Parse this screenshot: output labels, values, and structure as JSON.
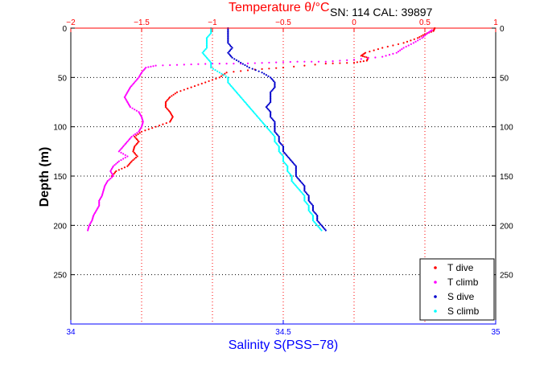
{
  "chart_data": {
    "type": "scatter",
    "title": "Temperature θ/°C",
    "subtitle": "SN: 114  CAL: 39897",
    "xlabel_bottom": "Salinity S(PSS−78)",
    "ylabel": "Depth (m)",
    "x_top": {
      "label": "Temperature θ/°C",
      "range": [
        -2,
        1
      ],
      "ticks": [
        -2,
        -1.5,
        -1,
        -0.5,
        0,
        0.5,
        1
      ],
      "tick_labels": [
        "−2",
        "−1.5",
        "−1",
        "−0.5",
        "0",
        "0.5",
        "1"
      ],
      "color": "#ff0000"
    },
    "x_bottom": {
      "label": "Salinity S(PSS−78)",
      "range": [
        34,
        35
      ],
      "ticks": [
        34,
        34.5,
        35
      ],
      "tick_labels": [
        "34",
        "34.5",
        "35"
      ],
      "color": "#0000ff"
    },
    "y": {
      "range": [
        0,
        300
      ],
      "inverted": true,
      "ticks": [
        0,
        50,
        100,
        150,
        200,
        250
      ],
      "tick_labels": [
        "0",
        "50",
        "100",
        "150",
        "200",
        "250"
      ]
    },
    "grid": true,
    "legend_position": "bottom-right",
    "series": [
      {
        "name": "T dive",
        "color": "#ff0000",
        "axis": "temperature",
        "points": [
          [
            0.57,
            0
          ],
          [
            0.56,
            3
          ],
          [
            0.5,
            6
          ],
          [
            0.45,
            10
          ],
          [
            0.35,
            15
          ],
          [
            0.2,
            20
          ],
          [
            0.08,
            25
          ],
          [
            0.05,
            28
          ],
          [
            0.1,
            30
          ],
          [
            0.09,
            33
          ],
          [
            0.0,
            35
          ],
          [
            -0.2,
            36
          ],
          [
            -0.5,
            40
          ],
          [
            -0.7,
            42
          ],
          [
            -0.9,
            45
          ],
          [
            -0.95,
            50
          ],
          [
            -1.05,
            55
          ],
          [
            -1.15,
            60
          ],
          [
            -1.25,
            65
          ],
          [
            -1.3,
            70
          ],
          [
            -1.33,
            75
          ],
          [
            -1.33,
            80
          ],
          [
            -1.3,
            85
          ],
          [
            -1.28,
            90
          ],
          [
            -1.3,
            95
          ],
          [
            -1.4,
            100
          ],
          [
            -1.5,
            105
          ],
          [
            -1.55,
            110
          ],
          [
            -1.52,
            115
          ],
          [
            -1.55,
            120
          ],
          [
            -1.56,
            125
          ],
          [
            -1.53,
            130
          ],
          [
            -1.57,
            135
          ],
          [
            -1.6,
            140
          ],
          [
            -1.68,
            145
          ],
          [
            -1.71,
            150
          ]
        ]
      },
      {
        "name": "T climb",
        "color": "#ff00ff",
        "axis": "temperature",
        "points": [
          [
            -1.88,
            205
          ],
          [
            -1.87,
            200
          ],
          [
            -1.85,
            195
          ],
          [
            -1.84,
            190
          ],
          [
            -1.82,
            185
          ],
          [
            -1.8,
            180
          ],
          [
            -1.8,
            175
          ],
          [
            -1.78,
            170
          ],
          [
            -1.77,
            165
          ],
          [
            -1.76,
            160
          ],
          [
            -1.74,
            155
          ],
          [
            -1.7,
            150
          ],
          [
            -1.72,
            145
          ],
          [
            -1.7,
            140
          ],
          [
            -1.66,
            135
          ],
          [
            -1.6,
            130
          ],
          [
            -1.66,
            125
          ],
          [
            -1.63,
            120
          ],
          [
            -1.6,
            115
          ],
          [
            -1.57,
            110
          ],
          [
            -1.52,
            105
          ],
          [
            -1.5,
            100
          ],
          [
            -1.49,
            95
          ],
          [
            -1.5,
            90
          ],
          [
            -1.52,
            85
          ],
          [
            -1.58,
            80
          ],
          [
            -1.6,
            75
          ],
          [
            -1.62,
            70
          ],
          [
            -1.6,
            65
          ],
          [
            -1.58,
            60
          ],
          [
            -1.55,
            55
          ],
          [
            -1.52,
            50
          ],
          [
            -1.5,
            45
          ],
          [
            -1.47,
            40
          ],
          [
            -1.4,
            38
          ],
          [
            -1.2,
            37
          ],
          [
            -1.0,
            36
          ],
          [
            -0.8,
            36
          ],
          [
            -0.6,
            35
          ],
          [
            -0.4,
            34
          ],
          [
            -0.2,
            34
          ],
          [
            0.0,
            32
          ],
          [
            0.2,
            29
          ],
          [
            0.3,
            25
          ],
          [
            0.35,
            20
          ],
          [
            0.42,
            15
          ],
          [
            0.48,
            10
          ],
          [
            0.52,
            5
          ],
          [
            0.55,
            2
          ]
        ]
      },
      {
        "name": "S dive",
        "color": "#0000cc",
        "axis": "salinity",
        "points": [
          [
            34.37,
            0
          ],
          [
            34.37,
            5
          ],
          [
            34.37,
            10
          ],
          [
            34.37,
            15
          ],
          [
            34.38,
            20
          ],
          [
            34.37,
            25
          ],
          [
            34.38,
            30
          ],
          [
            34.4,
            35
          ],
          [
            34.42,
            40
          ],
          [
            34.45,
            45
          ],
          [
            34.47,
            50
          ],
          [
            34.48,
            55
          ],
          [
            34.48,
            60
          ],
          [
            34.47,
            65
          ],
          [
            34.47,
            70
          ],
          [
            34.47,
            75
          ],
          [
            34.46,
            80
          ],
          [
            34.47,
            85
          ],
          [
            34.47,
            90
          ],
          [
            34.48,
            95
          ],
          [
            34.48,
            100
          ],
          [
            34.48,
            105
          ],
          [
            34.49,
            110
          ],
          [
            34.49,
            115
          ],
          [
            34.5,
            120
          ],
          [
            34.5,
            125
          ],
          [
            34.51,
            130
          ],
          [
            34.52,
            135
          ],
          [
            34.53,
            140
          ],
          [
            34.53,
            145
          ],
          [
            34.53,
            150
          ],
          [
            34.54,
            155
          ],
          [
            34.55,
            160
          ],
          [
            34.55,
            165
          ],
          [
            34.56,
            170
          ],
          [
            34.56,
            175
          ],
          [
            34.57,
            180
          ],
          [
            34.57,
            185
          ],
          [
            34.58,
            190
          ],
          [
            34.58,
            195
          ],
          [
            34.59,
            200
          ],
          [
            34.6,
            205
          ]
        ]
      },
      {
        "name": "S climb",
        "color": "#00ffff",
        "axis": "salinity",
        "points": [
          [
            34.59,
            205
          ],
          [
            34.58,
            200
          ],
          [
            34.57,
            195
          ],
          [
            34.57,
            190
          ],
          [
            34.56,
            185
          ],
          [
            34.56,
            180
          ],
          [
            34.55,
            175
          ],
          [
            34.55,
            170
          ],
          [
            34.54,
            165
          ],
          [
            34.53,
            160
          ],
          [
            34.52,
            155
          ],
          [
            34.52,
            150
          ],
          [
            34.51,
            145
          ],
          [
            34.51,
            140
          ],
          [
            34.5,
            135
          ],
          [
            34.5,
            130
          ],
          [
            34.49,
            125
          ],
          [
            34.49,
            120
          ],
          [
            34.48,
            115
          ],
          [
            34.48,
            110
          ],
          [
            34.47,
            105
          ],
          [
            34.46,
            100
          ],
          [
            34.45,
            95
          ],
          [
            34.44,
            90
          ],
          [
            34.43,
            85
          ],
          [
            34.42,
            80
          ],
          [
            34.41,
            75
          ],
          [
            34.4,
            70
          ],
          [
            34.39,
            65
          ],
          [
            34.38,
            60
          ],
          [
            34.37,
            55
          ],
          [
            34.37,
            50
          ],
          [
            34.35,
            45
          ],
          [
            34.33,
            40
          ],
          [
            34.33,
            35
          ],
          [
            34.32,
            30
          ],
          [
            34.31,
            25
          ],
          [
            34.32,
            20
          ],
          [
            34.32,
            15
          ],
          [
            34.32,
            10
          ],
          [
            34.33,
            5
          ],
          [
            34.33,
            0
          ]
        ]
      }
    ]
  }
}
